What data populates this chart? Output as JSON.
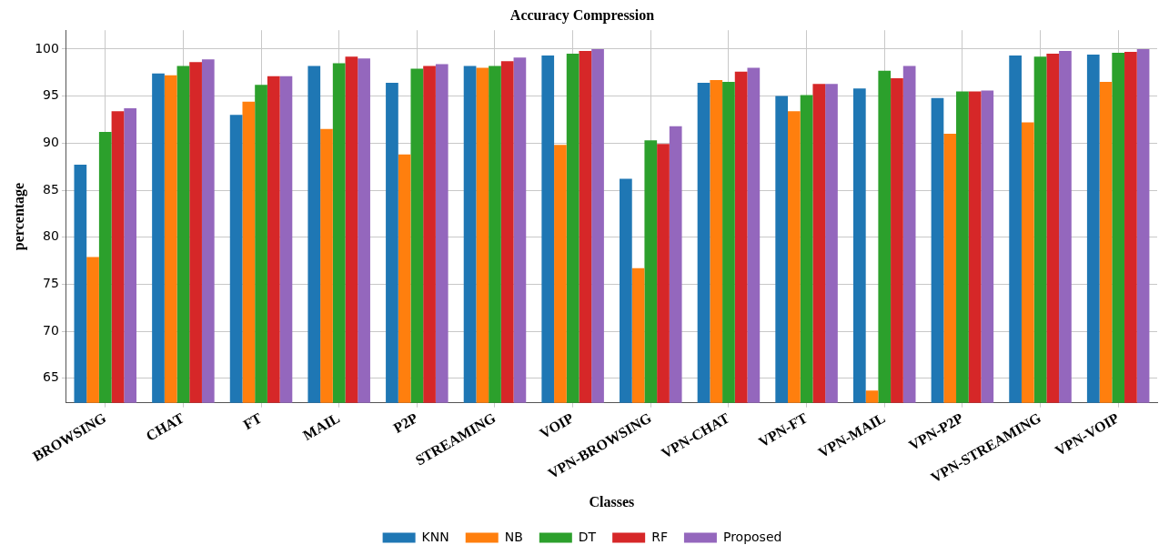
{
  "chart_data": {
    "type": "bar",
    "title": "Accuracy Compression",
    "xlabel": "Classes",
    "ylabel": "percentage",
    "categories": [
      "BROWSING",
      "CHAT",
      "FT",
      "MAIL",
      "P2P",
      "STREAMING",
      "VOIP",
      "VPN-BROWSING",
      "VPN-CHAT",
      "VPN-FT",
      "VPN-MAIL",
      "VPN-P2P",
      "VPN-STREAMING",
      "VPN-VOIP"
    ],
    "series": [
      {
        "name": "KNN",
        "color": "#1f77b4",
        "values": [
          87.7,
          97.4,
          93.0,
          98.2,
          96.4,
          98.2,
          99.3,
          86.2,
          96.4,
          95.0,
          95.8,
          94.8,
          99.3,
          99.4
        ]
      },
      {
        "name": "NB",
        "color": "#ff7f0e",
        "values": [
          77.9,
          97.2,
          94.4,
          91.5,
          88.8,
          98.0,
          89.8,
          76.7,
          96.7,
          93.4,
          63.7,
          91.0,
          92.2,
          96.5
        ]
      },
      {
        "name": "DT",
        "color": "#2ca02c",
        "values": [
          91.2,
          98.2,
          96.2,
          98.5,
          97.9,
          98.2,
          99.5,
          90.3,
          96.5,
          95.1,
          97.7,
          95.5,
          99.2,
          99.6
        ]
      },
      {
        "name": "RF",
        "color": "#d62728",
        "values": [
          93.4,
          98.6,
          97.1,
          99.2,
          98.2,
          98.7,
          99.8,
          89.9,
          97.6,
          96.3,
          96.9,
          95.5,
          99.5,
          99.7
        ]
      },
      {
        "name": "Proposed",
        "color": "#9467bd",
        "values": [
          93.7,
          98.9,
          97.1,
          99.0,
          98.4,
          99.1,
          100.0,
          91.8,
          98.0,
          96.3,
          98.2,
          95.6,
          99.8,
          100.0
        ]
      }
    ],
    "ylim": [
      62.4,
      102
    ],
    "yticks": [
      65,
      70,
      75,
      80,
      85,
      90,
      95,
      100
    ],
    "grid": true,
    "legend": "bottom"
  }
}
